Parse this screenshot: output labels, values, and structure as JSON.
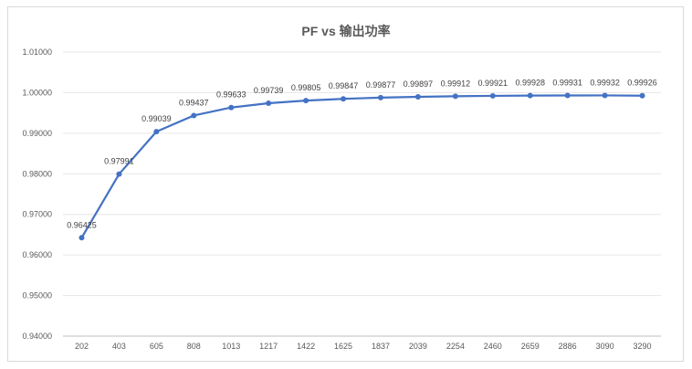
{
  "chart_data": {
    "type": "line",
    "title": "PF vs 输出功率",
    "xlabel": "",
    "ylabel": "",
    "categories": [
      "202",
      "403",
      "605",
      "808",
      "1013",
      "1217",
      "1422",
      "1625",
      "1837",
      "2039",
      "2254",
      "2460",
      "2659",
      "2886",
      "3090",
      "3290"
    ],
    "series": [
      {
        "name": "PF",
        "values": [
          0.96425,
          0.97991,
          0.99039,
          0.99437,
          0.99633,
          0.99739,
          0.99805,
          0.99847,
          0.99877,
          0.99897,
          0.99912,
          0.99921,
          0.99928,
          0.99931,
          0.99932,
          0.99926
        ],
        "labels": [
          "0.96425",
          "0.97991",
          "0.99039",
          "0.99437",
          "0.99633",
          "0.99739",
          "0.99805",
          "0.99847",
          "0.99877",
          "0.99897",
          "0.99912",
          "0.99921",
          "0.99928",
          "0.99931",
          "0.99932",
          "0.99926"
        ],
        "color": "#4472c4"
      }
    ],
    "ylim": [
      0.94,
      1.01
    ],
    "yticks": [
      "0.94000",
      "0.95000",
      "0.96000",
      "0.97000",
      "0.98000",
      "0.99000",
      "1.00000",
      "1.01000"
    ],
    "grid": true,
    "legend": "none"
  }
}
